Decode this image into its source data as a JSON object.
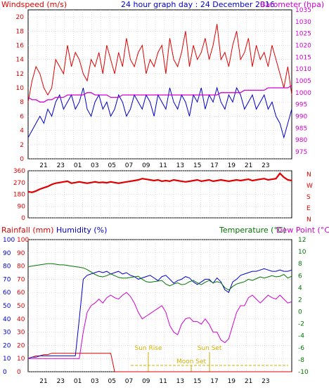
{
  "header": {
    "left_label": "Windspeed (m/s)",
    "center_title": "24 hour graph day : 24 December 2016",
    "right_label": "Barometer (hpa)"
  },
  "colors": {
    "red": "#e00000",
    "blue": "#0000cc",
    "magenta": "#d000d0",
    "green": "#007700",
    "yellow": "#d4b000",
    "grid": "#c8c8c8"
  },
  "x_ticks": [
    "21",
    "23",
    "01",
    "03",
    "05",
    "07",
    "09",
    "11",
    "13",
    "15",
    "17",
    "19",
    "21",
    "23"
  ],
  "chart_data": [
    {
      "type": "line",
      "id": "wind-baro",
      "ylabel": "Windspeed (m/s)",
      "y2label": "Barometer (hpa)",
      "ylim": [
        0,
        21
      ],
      "y2lim": [
        972,
        1035
      ],
      "yticks": [
        0,
        2,
        4,
        6,
        8,
        10,
        12,
        14,
        16,
        18,
        20
      ],
      "y2ticks": [
        975,
        980,
        985,
        990,
        995,
        1000,
        1005,
        1010,
        1015,
        1020,
        1025,
        1030,
        1035
      ],
      "series": [
        {
          "values": [
            8,
            11,
            13,
            12,
            10,
            9,
            10,
            14,
            13,
            12,
            16,
            13,
            15,
            14,
            12,
            11,
            14,
            13,
            15,
            12,
            16,
            14,
            12,
            15,
            13,
            17,
            14,
            13,
            15,
            16,
            12,
            14,
            13,
            15,
            16,
            12,
            17,
            14,
            13,
            15,
            18,
            13,
            16,
            14,
            15,
            17,
            14,
            16,
            19,
            14,
            15,
            13,
            16,
            18,
            14,
            15,
            17,
            13,
            16,
            14,
            15,
            13,
            16,
            14,
            12,
            10,
            13,
            9
          ]
        },
        {
          "values": [
            3,
            4,
            5,
            6,
            5,
            7,
            6,
            8,
            9,
            7,
            8,
            9,
            7,
            8,
            10,
            7,
            6,
            8,
            9,
            7,
            8,
            6,
            7,
            9,
            8,
            6,
            7,
            9,
            8,
            7,
            9,
            8,
            6,
            9,
            8,
            7,
            10,
            8,
            7,
            9,
            8,
            6,
            9,
            8,
            10,
            7,
            9,
            8,
            10,
            8,
            7,
            9,
            8,
            10,
            9,
            7,
            8,
            9,
            7,
            8,
            9,
            7,
            8,
            6,
            5,
            3,
            5,
            7
          ]
        },
        {
          "values": [
            998,
            997,
            997,
            996,
            996,
            997,
            997,
            998,
            998,
            998,
            999,
            999,
            999,
            999,
            999,
            1000,
            1000,
            999,
            999,
            999,
            999,
            998,
            998,
            998,
            999,
            999,
            999,
            999,
            999,
            999,
            999,
            999,
            999,
            999,
            999,
            999,
            999,
            999,
            999,
            999,
            999,
            999,
            999,
            999,
            999,
            999,
            999,
            999,
            999,
            1000,
            1000,
            1000,
            1000,
            1000,
            1000,
            1001,
            1001,
            1001,
            1001,
            1001,
            1001,
            1002,
            1002,
            1002,
            1002,
            1002,
            1002,
            1003
          ]
        }
      ]
    },
    {
      "type": "scatter",
      "id": "wind-direction",
      "ylim": [
        0,
        360
      ],
      "yticks": [
        0,
        90,
        180,
        270,
        360
      ],
      "y_right_labels": [
        "N",
        "W",
        "S",
        "E",
        "N"
      ],
      "series": [
        {
          "values": [
            200,
            195,
            205,
            220,
            230,
            240,
            255,
            265,
            270,
            275,
            280,
            265,
            270,
            275,
            270,
            265,
            270,
            275,
            270,
            272,
            268,
            275,
            270,
            265,
            270,
            275,
            280,
            285,
            290,
            300,
            295,
            290,
            285,
            290,
            280,
            285,
            280,
            290,
            285,
            280,
            275,
            280,
            285,
            290,
            280,
            285,
            290,
            280,
            285,
            290,
            285,
            280,
            285,
            290,
            285,
            290,
            295,
            285,
            290,
            295,
            300,
            290,
            295,
            300,
            340,
            310,
            290,
            285
          ]
        }
      ]
    },
    {
      "type": "line",
      "id": "rain-hum-temp",
      "ylabel": "Rainfall (mm)",
      "ylabel2": "Humidity (%)",
      "y2label": "Temperature (°C)",
      "y2label2": "Dew Point (°C)",
      "ylim": [
        0,
        100
      ],
      "y2lim": [
        -10,
        12
      ],
      "yticks": [
        0,
        10,
        20,
        30,
        40,
        50,
        60,
        70,
        80,
        90,
        100
      ],
      "y2ticks": [
        -10,
        -8,
        -6,
        -4,
        -2,
        0,
        2,
        4,
        6,
        8,
        10,
        12
      ],
      "annotations": [
        "Sun Rise",
        "Sun Set",
        "Moon Set"
      ],
      "series": [
        {
          "values": [
            10,
            11,
            12,
            12,
            13,
            13,
            14,
            14,
            14,
            14,
            14,
            14,
            14,
            14,
            14,
            14,
            14,
            14,
            14,
            14,
            14,
            14,
            0,
            0,
            0,
            0,
            0,
            0,
            0,
            0,
            0,
            0,
            0,
            0,
            0,
            0,
            0,
            0,
            0,
            0,
            0,
            0,
            0,
            0,
            0,
            0,
            0,
            0,
            0,
            0,
            0,
            0,
            0,
            0,
            0,
            0,
            0,
            0,
            0,
            0,
            0,
            0,
            0,
            0,
            0,
            0,
            0,
            0
          ]
        },
        {
          "values": [
            10,
            11,
            11,
            12,
            12,
            12,
            12,
            12,
            12,
            12,
            12,
            12,
            12,
            40,
            70,
            73,
            74,
            75,
            76,
            75,
            76,
            74,
            75,
            76,
            74,
            75,
            73,
            72,
            70,
            71,
            72,
            73,
            71,
            69,
            72,
            73,
            70,
            67,
            69,
            70,
            72,
            71,
            68,
            66,
            68,
            70,
            70,
            67,
            71,
            68,
            62,
            60,
            68,
            70,
            73,
            74,
            75,
            76,
            76,
            77,
            78,
            77,
            76,
            76,
            77,
            76,
            76,
            77
          ]
        },
        {
          "values": [
            10,
            10,
            10,
            10,
            10,
            10,
            10,
            10,
            10,
            10,
            10,
            10,
            10,
            10,
            30,
            45,
            50,
            52,
            55,
            52,
            56,
            58,
            56,
            55,
            58,
            60,
            57,
            52,
            45,
            40,
            42,
            44,
            46,
            48,
            50,
            45,
            35,
            30,
            28,
            36,
            40,
            41,
            38,
            38,
            36,
            40,
            36,
            30,
            30,
            24,
            22,
            25,
            35,
            45,
            50,
            50,
            56,
            58,
            55,
            52,
            55,
            58,
            56,
            55,
            58,
            55,
            52,
            53
          ]
        },
        {
          "values": [
            7.5,
            7.6,
            7.7,
            7.8,
            7.9,
            8.0,
            8.0,
            7.9,
            7.8,
            7.8,
            7.7,
            7.6,
            7.5,
            7.4,
            7.3,
            7.0,
            6.6,
            6.2,
            5.9,
            5.8,
            6.0,
            6.3,
            6.0,
            5.7,
            5.6,
            5.6,
            5.7,
            5.8,
            5.9,
            5.4,
            5.0,
            4.9,
            5.0,
            5.1,
            5.2,
            4.6,
            4.3,
            4.6,
            4.8,
            4.5,
            4.6,
            5.0,
            5.2,
            4.8,
            4.5,
            4.9,
            5.2,
            4.8,
            5.0,
            4.8,
            4.0,
            3.6,
            4.2,
            4.6,
            4.8,
            5.0,
            5.4,
            5.2,
            5.5,
            5.8,
            5.6,
            5.8,
            6.0,
            5.8,
            5.9,
            6.2,
            5.6,
            5.9
          ]
        }
      ]
    }
  ]
}
